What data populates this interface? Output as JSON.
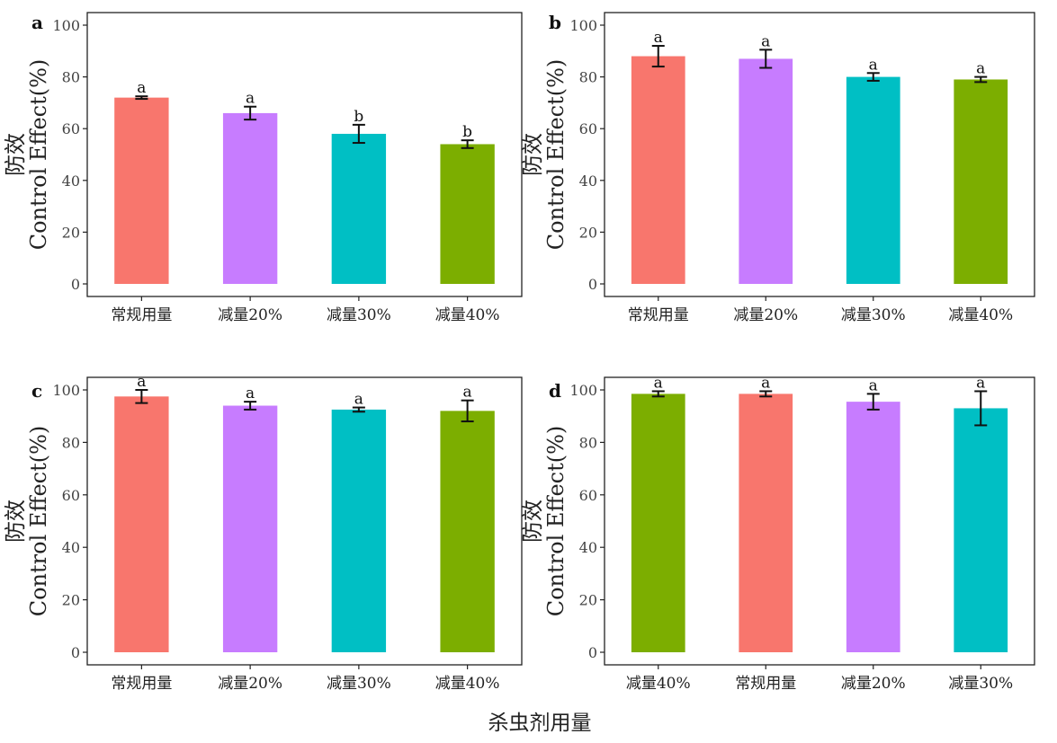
{
  "x_axis_title": "杀虫剂用量",
  "chart_data": [
    {
      "type": "bar",
      "panel_label": "a",
      "ylabel_cn": "防效",
      "ylabel_en": "Control Effect(%)",
      "ylim": [
        0,
        100
      ],
      "yticks": [
        0,
        20,
        40,
        60,
        80,
        100
      ],
      "grid": false,
      "categories": [
        "常规用量",
        "减量20%",
        "减量30%",
        "减量40%"
      ],
      "values": [
        72,
        66,
        58,
        54
      ],
      "errors": [
        0.5,
        2.5,
        3.5,
        1.5
      ],
      "significance": [
        "a",
        "a",
        "b",
        "b"
      ],
      "colors": [
        "#F8766D",
        "#C77CFF",
        "#00BFC4",
        "#7CAE00"
      ]
    },
    {
      "type": "bar",
      "panel_label": "b",
      "ylabel_cn": "防效",
      "ylabel_en": "Control Effect(%)",
      "ylim": [
        0,
        100
      ],
      "yticks": [
        0,
        20,
        40,
        60,
        80,
        100
      ],
      "grid": false,
      "categories": [
        "常规用量",
        "减量20%",
        "减量30%",
        "减量40%"
      ],
      "values": [
        88,
        87,
        80,
        79
      ],
      "errors": [
        4,
        3.5,
        1.5,
        1
      ],
      "significance": [
        "a",
        "a",
        "a",
        "a"
      ],
      "colors": [
        "#F8766D",
        "#C77CFF",
        "#00BFC4",
        "#7CAE00"
      ]
    },
    {
      "type": "bar",
      "panel_label": "c",
      "ylabel_cn": "防效",
      "ylabel_en": "Control Effect(%)",
      "ylim": [
        0,
        100
      ],
      "yticks": [
        0,
        20,
        40,
        60,
        80,
        100
      ],
      "grid": false,
      "categories": [
        "常规用量",
        "减量20%",
        "减量30%",
        "减量40%"
      ],
      "values": [
        97.5,
        94,
        92.5,
        92
      ],
      "errors": [
        2.5,
        1.5,
        0.8,
        4
      ],
      "significance": [
        "a",
        "a",
        "a",
        "a"
      ],
      "colors": [
        "#F8766D",
        "#C77CFF",
        "#00BFC4",
        "#7CAE00"
      ]
    },
    {
      "type": "bar",
      "panel_label": "d",
      "ylabel_cn": "防效",
      "ylabel_en": "Control Effect(%)",
      "ylim": [
        0,
        100
      ],
      "yticks": [
        0,
        20,
        40,
        60,
        80,
        100
      ],
      "grid": false,
      "categories": [
        "减量40%",
        "常规用量",
        "减量20%",
        "减量30%"
      ],
      "values": [
        98.5,
        98.5,
        95.5,
        93
      ],
      "errors": [
        1,
        1,
        3,
        6.5
      ],
      "significance": [
        "a",
        "a",
        "a",
        "a"
      ],
      "colors": [
        "#7CAE00",
        "#F8766D",
        "#C77CFF",
        "#00BFC4"
      ]
    }
  ]
}
